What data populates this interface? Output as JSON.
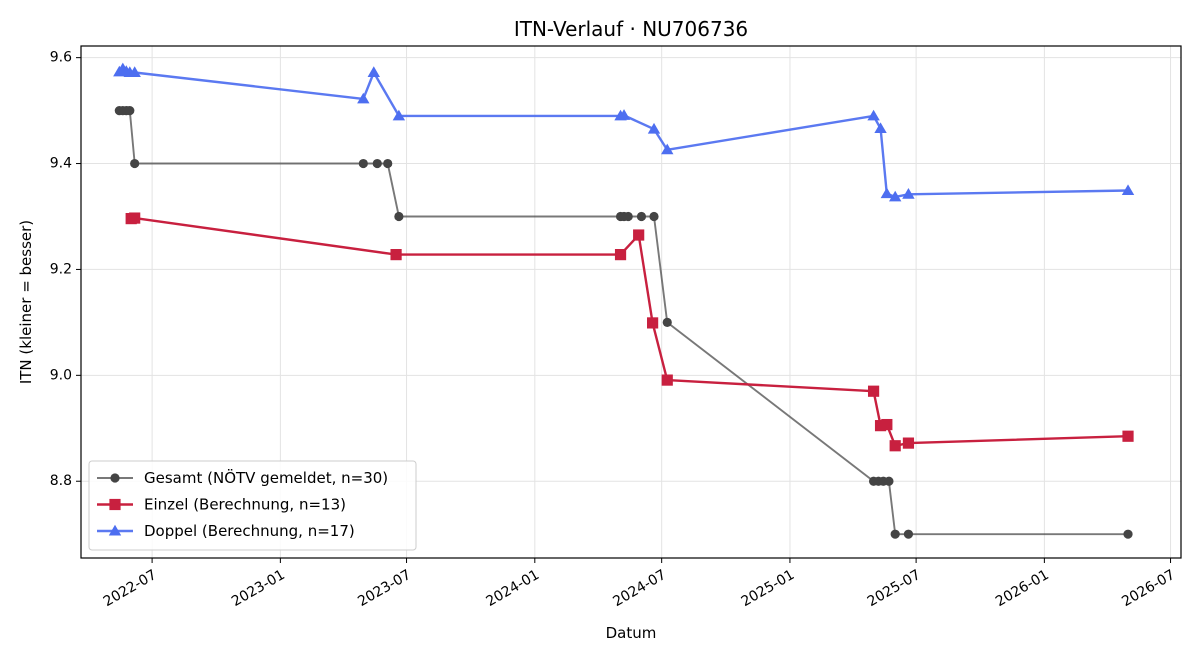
{
  "chart_data": {
    "type": "line",
    "title": "ITN-Verlauf · NU706736",
    "xlabel": "Datum",
    "ylabel": "ITN  (kleiner = besser)",
    "x_axis": {
      "type": "date",
      "range": [
        "2022-03-21",
        "2026-07-16"
      ],
      "ticks": [
        {
          "date": "2022-07-01",
          "label": "2022-07"
        },
        {
          "date": "2023-01-01",
          "label": "2023-01"
        },
        {
          "date": "2023-07-01",
          "label": "2023-07"
        },
        {
          "date": "2024-01-01",
          "label": "2024-01"
        },
        {
          "date": "2024-07-01",
          "label": "2024-07"
        },
        {
          "date": "2025-01-01",
          "label": "2025-01"
        },
        {
          "date": "2025-07-01",
          "label": "2025-07"
        },
        {
          "date": "2026-01-01",
          "label": "2026-01"
        },
        {
          "date": "2026-07-01",
          "label": "2026-07"
        }
      ]
    },
    "y_axis": {
      "range": [
        8.655,
        9.622
      ],
      "ticks": [
        {
          "value": 8.8,
          "label": "8.8"
        },
        {
          "value": 9.0,
          "label": "9.0"
        },
        {
          "value": 9.2,
          "label": "9.2"
        },
        {
          "value": 9.4,
          "label": "9.4"
        },
        {
          "value": 9.6,
          "label": "9.6"
        }
      ]
    },
    "grid": true,
    "legend_position": "lower-left",
    "series": [
      {
        "name": "Gesamt (NÖTV gemeldet, n=30)",
        "color": "#444444",
        "line_opacity": 0.72,
        "marker": "circle",
        "points": [
          {
            "x": "2022-05-15",
            "y": 9.5
          },
          {
            "x": "2022-05-20",
            "y": 9.5
          },
          {
            "x": "2022-05-25",
            "y": 9.5
          },
          {
            "x": "2022-05-30",
            "y": 9.5
          },
          {
            "x": "2022-06-06",
            "y": 9.4
          },
          {
            "x": "2023-04-30",
            "y": 9.4
          },
          {
            "x": "2023-05-20",
            "y": 9.4
          },
          {
            "x": "2023-06-04",
            "y": 9.4
          },
          {
            "x": "2023-06-20",
            "y": 9.3
          },
          {
            "x": "2024-05-03",
            "y": 9.3
          },
          {
            "x": "2024-05-08",
            "y": 9.3
          },
          {
            "x": "2024-05-14",
            "y": 9.3
          },
          {
            "x": "2024-06-02",
            "y": 9.3
          },
          {
            "x": "2024-06-20",
            "y": 9.3
          },
          {
            "x": "2024-07-09",
            "y": 9.1
          },
          {
            "x": "2025-05-01",
            "y": 8.8
          },
          {
            "x": "2025-05-08",
            "y": 8.8
          },
          {
            "x": "2025-05-15",
            "y": 8.8
          },
          {
            "x": "2025-05-23",
            "y": 8.8
          },
          {
            "x": "2025-06-01",
            "y": 8.7
          },
          {
            "x": "2025-06-20",
            "y": 8.7
          },
          {
            "x": "2026-05-01",
            "y": 8.7
          }
        ]
      },
      {
        "name": "Einzel (Berechnung, n=13)",
        "color": "#c8203f",
        "line_opacity": 1,
        "marker": "square",
        "points": [
          {
            "x": "2022-06-01",
            "y": 9.296
          },
          {
            "x": "2022-06-06",
            "y": 9.297
          },
          {
            "x": "2023-06-16",
            "y": 9.228
          },
          {
            "x": "2024-05-03",
            "y": 9.228
          },
          {
            "x": "2024-05-29",
            "y": 9.265
          },
          {
            "x": "2024-06-18",
            "y": 9.099
          },
          {
            "x": "2024-07-09",
            "y": 8.991
          },
          {
            "x": "2025-05-01",
            "y": 8.97
          },
          {
            "x": "2025-05-11",
            "y": 8.905
          },
          {
            "x": "2025-05-20",
            "y": 8.907
          },
          {
            "x": "2025-06-01",
            "y": 8.867
          },
          {
            "x": "2025-06-20",
            "y": 8.872
          },
          {
            "x": "2026-05-01",
            "y": 8.885
          }
        ]
      },
      {
        "name": "Doppel (Berechnung, n=17)",
        "color": "#4d6ef0",
        "line_opacity": 0.92,
        "marker": "triangle",
        "points": [
          {
            "x": "2022-05-15",
            "y": 9.573
          },
          {
            "x": "2022-05-20",
            "y": 9.579
          },
          {
            "x": "2022-05-25",
            "y": 9.574
          },
          {
            "x": "2022-05-30",
            "y": 9.572
          },
          {
            "x": "2022-06-06",
            "y": 9.572
          },
          {
            "x": "2023-04-30",
            "y": 9.522
          },
          {
            "x": "2023-05-15",
            "y": 9.572
          },
          {
            "x": "2023-06-20",
            "y": 9.49
          },
          {
            "x": "2024-05-03",
            "y": 9.49
          },
          {
            "x": "2024-05-08",
            "y": 9.491
          },
          {
            "x": "2024-06-20",
            "y": 9.465
          },
          {
            "x": "2024-07-09",
            "y": 9.426
          },
          {
            "x": "2025-05-01",
            "y": 9.49
          },
          {
            "x": "2025-05-11",
            "y": 9.466
          },
          {
            "x": "2025-05-20",
            "y": 9.343
          },
          {
            "x": "2025-06-01",
            "y": 9.337
          },
          {
            "x": "2025-06-20",
            "y": 9.342
          },
          {
            "x": "2026-05-01",
            "y": 9.349
          }
        ]
      }
    ]
  }
}
